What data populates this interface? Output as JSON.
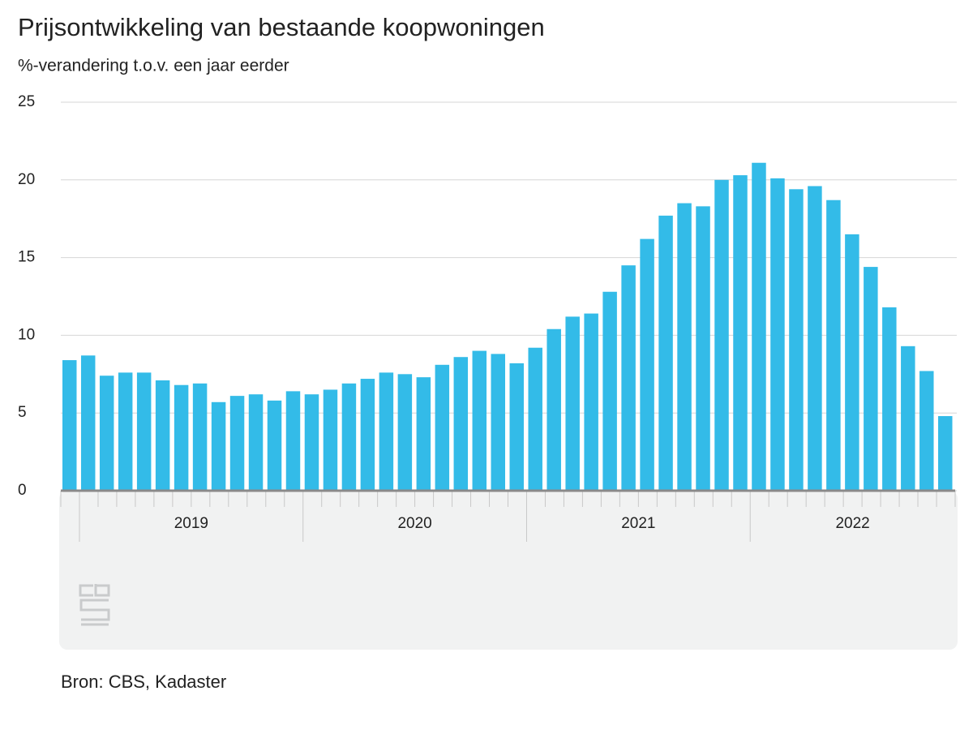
{
  "chart_data": {
    "type": "bar",
    "title": "Prijsontwikkeling van bestaande koopwoningen",
    "subtitle": "%-verandering t.o.v. een jaar eerder",
    "source": "Bron: CBS, Kadaster",
    "groups": [
      "2019",
      "2020",
      "2021",
      "2022"
    ],
    "values": [
      8.4,
      8.7,
      7.4,
      7.6,
      7.6,
      7.1,
      6.8,
      6.9,
      5.7,
      6.1,
      6.2,
      5.8,
      6.4,
      6.2,
      6.5,
      6.9,
      7.2,
      7.6,
      7.5,
      7.3,
      8.1,
      8.6,
      9.0,
      8.8,
      8.2,
      9.2,
      10.4,
      11.2,
      11.4,
      12.8,
      14.5,
      16.2,
      17.7,
      18.5,
      18.3,
      20.0,
      20.3,
      21.1,
      20.1,
      19.4,
      19.6,
      18.7,
      16.5,
      14.4,
      11.8,
      9.3,
      7.7,
      4.8
    ],
    "color": "#33bbe8",
    "ylim": [
      0,
      25
    ],
    "yticks": [
      0,
      5,
      10,
      15,
      20,
      25
    ],
    "grid": true
  }
}
